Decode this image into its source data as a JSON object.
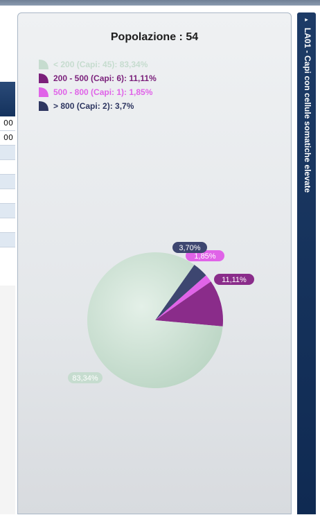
{
  "left_table": {
    "rows": [
      "00",
      "00",
      "",
      "",
      "",
      "",
      "",
      "",
      ""
    ]
  },
  "side_tab": {
    "arrow": "▸",
    "label": "LA01 - Capi con cellule somatiche elevate"
  },
  "chart_data": {
    "type": "pie",
    "title": "Popolazione : 54",
    "slices": [
      {
        "label": "< 200",
        "count": 45,
        "percent": 83.34,
        "legend": "< 200 (Capi: 45): 83,34%",
        "data_label": "83,34%",
        "color": "#c6dccf",
        "legend_color": "#c6dccf"
      },
      {
        "label": "200 - 500",
        "count": 6,
        "percent": 11.11,
        "legend": "200 - 500 (Capi: 6): 11,11%",
        "data_label": "11,11%",
        "color": "#8a2c8a",
        "legend_color": "#7a1f7a"
      },
      {
        "label": "500 - 800",
        "count": 1,
        "percent": 1.85,
        "legend": "500 - 800 (Capi: 1): 1,85%",
        "data_label": "1,85%",
        "color": "#e063e8",
        "legend_color": "#e063e8"
      },
      {
        "label": "> 800",
        "count": 2,
        "percent": 3.7,
        "legend": "> 800 (Capi: 2): 3,7%",
        "data_label": "3,70%",
        "color": "#3d4670",
        "legend_color": "#2e3660"
      }
    ],
    "legend_position": "top-left"
  }
}
